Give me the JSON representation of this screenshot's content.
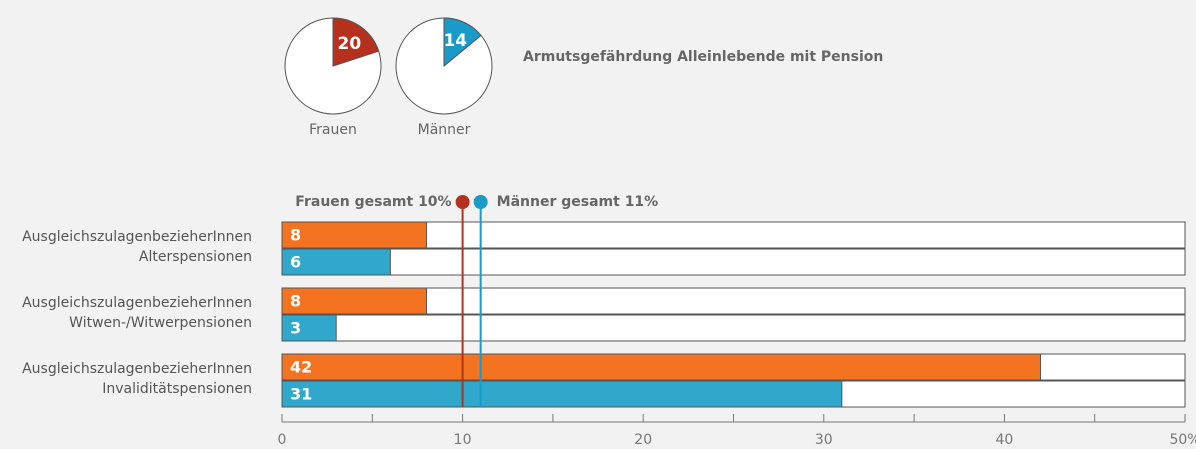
{
  "chart_data": [
    {
      "type": "pie",
      "title": "Armutsgefährdung Alleinlebende mit Pension",
      "categories": [
        "Frauen",
        "Männer"
      ],
      "values": [
        20,
        14
      ],
      "colors": [
        "#b5311e",
        "#1a9ac8"
      ]
    },
    {
      "type": "bar",
      "orientation": "horizontal",
      "categories": [
        "AusgleichszulagenbezieherInnen\nAlterspensionen",
        "AusgleichszulagenbezieherInnen\nWitwen-/Witwerpensionen",
        "AusgleichszulagenbezieherInnen\nInvaliditätspensionen"
      ],
      "series": [
        {
          "color": "#f47321",
          "values": [
            8,
            8,
            42
          ]
        },
        {
          "color": "#2fa8cc",
          "values": [
            6,
            3,
            31
          ]
        }
      ],
      "reference_lines": [
        {
          "label": "Frauen gesamt 10%",
          "value": 10,
          "color": "#b5311e"
        },
        {
          "label": "Männer gesamt 11%",
          "value": 11,
          "color": "#1a9ac8"
        }
      ],
      "xlim": [
        0,
        50
      ],
      "xticks": [
        0,
        10,
        20,
        30,
        40,
        {
          "value": 50,
          "label": "50%"
        }
      ],
      "xminorticks": [
        5,
        15,
        25,
        35,
        45
      ]
    }
  ]
}
